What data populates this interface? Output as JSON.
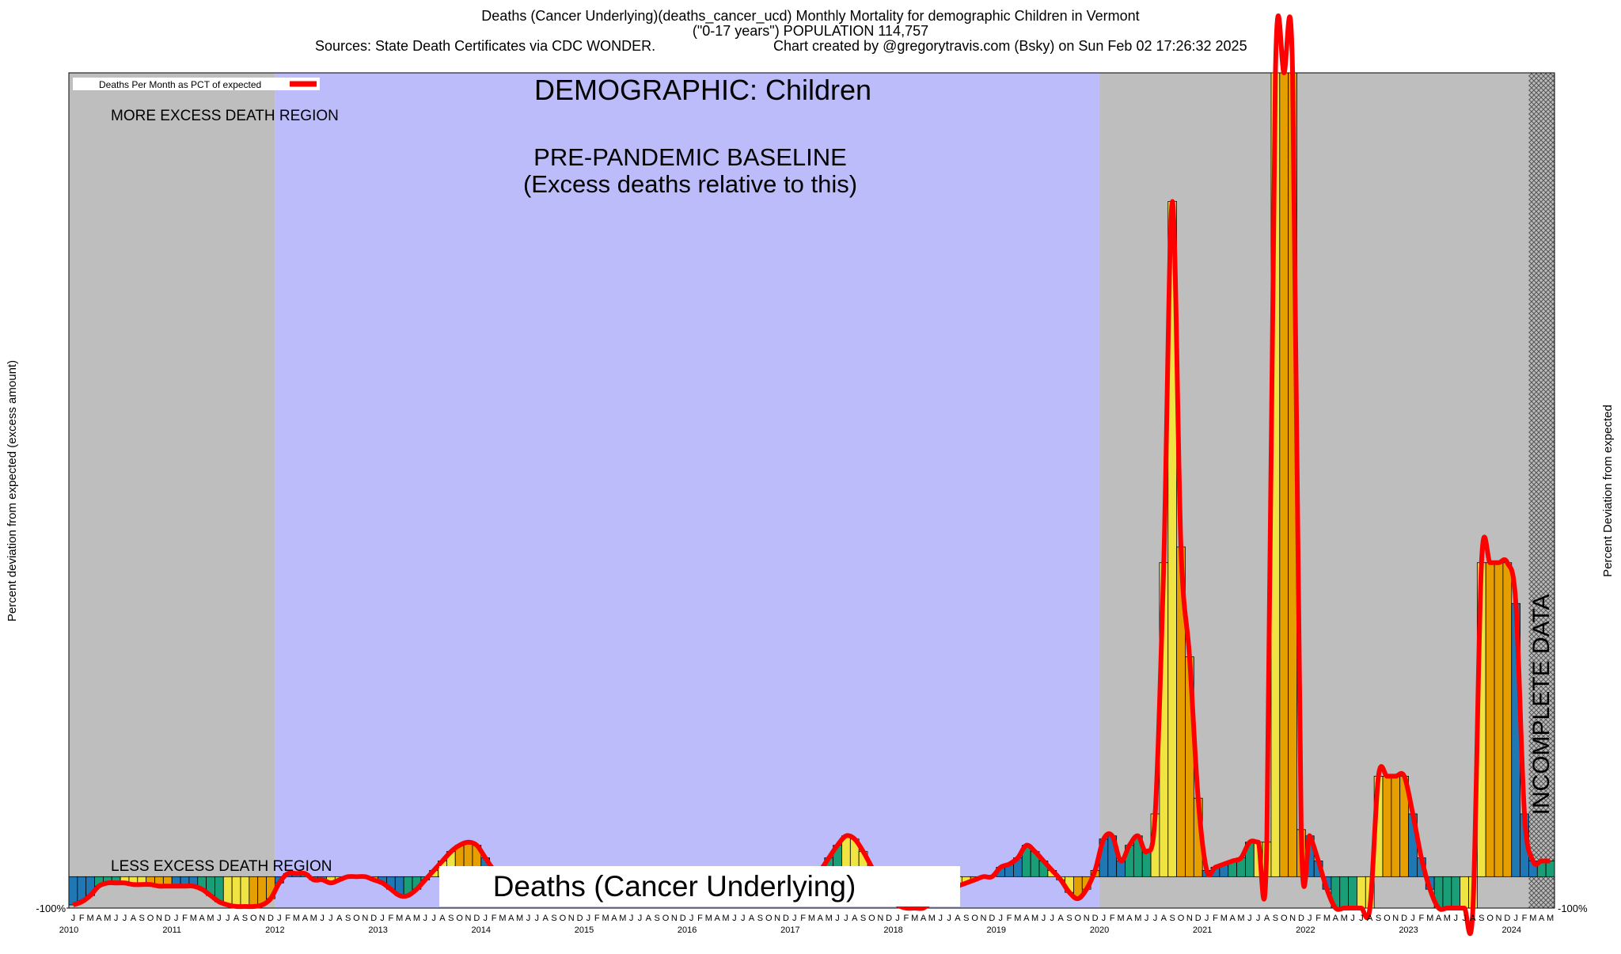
{
  "chart_data": {
    "type": "bar",
    "title": "Deaths (Cancer Underlying)(deaths_cancer_ucd) Monthly Mortality for demographic Children in Vermont",
    "subtitle": "(\"0-17 years\") POPULATION 114,757",
    "source": "Sources: State Death Certificates via CDC WONDER.",
    "credit": "Chart created by @gregorytravis.com (Bsky) on Sun Feb 02 17:26:32 2025",
    "demographic_label": "DEMOGRAPHIC: Children",
    "more_region_label": "MORE EXCESS DEATH REGION",
    "less_region_label": "LESS EXCESS DEATH REGION",
    "baseline_label": "PRE-PANDEMIC BASELINE",
    "baseline_note": "(Excess deaths relative to this)",
    "metric_label": "Deaths (Cancer Underlying)",
    "incomplete_label": "INCOMPLETE DATA",
    "ylabel": "Percent deviation from expected (excess amount)",
    "y2label": "Percent Deviation from expected",
    "categories": [
      "J",
      "F",
      "M",
      "A",
      "M",
      "J",
      "J",
      "A",
      "S",
      "O",
      "N",
      "D",
      "J",
      "F",
      "M",
      "A",
      "M",
      "J",
      "J",
      "A",
      "S",
      "O",
      "N",
      "D",
      "J",
      "F",
      "M",
      "A",
      "M",
      "J",
      "J",
      "A",
      "S",
      "O",
      "N",
      "D",
      "J",
      "F",
      "M",
      "A",
      "M",
      "J",
      "J",
      "A",
      "S",
      "O",
      "N",
      "D",
      "J",
      "F",
      "M",
      "A",
      "M",
      "J",
      "J",
      "A",
      "S",
      "O",
      "N",
      "D",
      "J",
      "F",
      "M",
      "A",
      "M",
      "J",
      "J",
      "A",
      "S",
      "O",
      "N",
      "D",
      "J",
      "F",
      "M",
      "A",
      "M",
      "J",
      "J",
      "A",
      "S",
      "O",
      "N",
      "D",
      "J",
      "F",
      "M",
      "A",
      "M",
      "J",
      "J",
      "A",
      "S",
      "O",
      "N",
      "D",
      "J",
      "F",
      "M",
      "A",
      "M",
      "J",
      "J",
      "A",
      "S",
      "O",
      "N",
      "D",
      "J",
      "F",
      "M",
      "A",
      "M",
      "J",
      "J",
      "A",
      "S",
      "O",
      "N",
      "D",
      "J",
      "F",
      "M",
      "A",
      "M",
      "J",
      "J",
      "A",
      "S",
      "O",
      "N",
      "D",
      "J",
      "F",
      "M",
      "A",
      "M",
      "J",
      "J",
      "A",
      "S",
      "O",
      "N",
      "D",
      "J",
      "F",
      "M",
      "A",
      "M",
      "J",
      "J",
      "A",
      "S",
      "O",
      "N",
      "D",
      "J",
      "F",
      "M",
      "A",
      "M",
      "J",
      "J",
      "A",
      "S",
      "O",
      "N",
      "D",
      "J",
      "F",
      "M",
      "A",
      "M"
    ],
    "years": [
      "2010",
      "2011",
      "2012",
      "2013",
      "2014",
      "2015",
      "2016",
      "2017",
      "2018",
      "2019",
      "2020",
      "2021",
      "2022",
      "2023",
      "2024"
    ],
    "series": [
      {
        "name": "Deaths Per Month as PCT of expected",
        "color": "#ff0000",
        "values": [
          -90,
          -80,
          -60,
          -30,
          -20,
          -20,
          -20,
          -25,
          -25,
          -25,
          -30,
          -30,
          -30,
          -30,
          -30,
          -40,
          -60,
          -80,
          -90,
          -95,
          -95,
          -95,
          -90,
          -70,
          -20,
          10,
          10,
          10,
          -10,
          -10,
          -20,
          -10,
          0,
          0,
          0,
          -10,
          -20,
          -40,
          -60,
          -60,
          -40,
          -10,
          20,
          50,
          80,
          100,
          110,
          100,
          60,
          20,
          -10,
          -20,
          -30,
          -40,
          -40,
          -40,
          -40,
          -40,
          -40,
          -40,
          -50,
          -60,
          -60,
          -50,
          -40,
          -40,
          -40,
          -40,
          -40,
          -50,
          -60,
          -70,
          -50,
          -40,
          -40,
          -40,
          -40,
          -40,
          -40,
          -40,
          -40,
          -40,
          -40,
          -40,
          -40,
          -30,
          -10,
          20,
          60,
          100,
          130,
          120,
          80,
          30,
          -20,
          -60,
          -90,
          -100,
          -100,
          -100,
          -80,
          -60,
          -40,
          -30,
          -20,
          -10,
          0,
          0,
          30,
          40,
          60,
          100,
          80,
          50,
          20,
          -10,
          -50,
          -70,
          -40,
          20,
          120,
          130,
          50,
          100,
          130,
          80,
          200,
          1000,
          2150,
          1050,
          700,
          250,
          20,
          30,
          40,
          50,
          60,
          110,
          110,
          110,
          2560,
          2560,
          2560,
          150,
          130,
          50,
          -40,
          -100,
          -100,
          -100,
          -100,
          -100,
          320,
          320,
          320,
          320,
          200,
          60,
          -40,
          -100,
          -100,
          -100,
          -100,
          -100,
          1000,
          1000,
          1000,
          1000,
          870,
          200,
          50,
          50,
          50
        ]
      }
    ],
    "bar_colors": [
      "#1f77b4",
      "#1a9e77",
      "#f0e442",
      "#e69f00"
    ],
    "ylim": [
      -100,
      2560
    ],
    "yticks": [
      {
        "value": -100,
        "label": "-100%"
      }
    ]
  }
}
